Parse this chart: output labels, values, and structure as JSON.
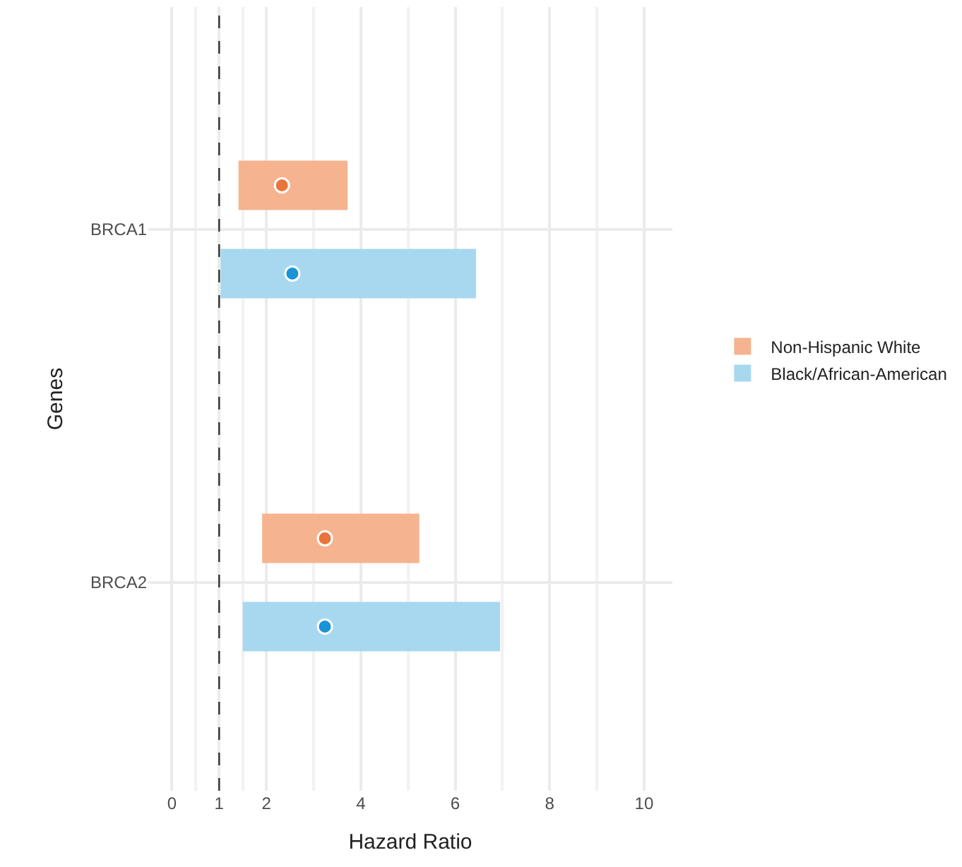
{
  "chart_data": {
    "type": "bar",
    "orientation": "horizontal",
    "xlabel": "Hazard Ratio",
    "ylabel": "Genes",
    "categories": [
      "BRCA1",
      "BRCA2"
    ],
    "series": [
      {
        "name": "Non-Hispanic White",
        "color": "#f5b48f",
        "base": [
          1.41,
          1.91
        ],
        "values": [
          2.31,
          3.33
        ]
      },
      {
        "name": "Black/African-American",
        "color": "#a8d8f0",
        "base": [
          1.03,
          1.5
        ],
        "values": [
          5.41,
          5.45
        ]
      },
      {
        "type": "scatter",
        "color": "#e8743b",
        "values": [
          2.33,
          3.24
        ]
      },
      {
        "type": "scatter",
        "color": "#1a94d6",
        "values": [
          2.55,
          3.24
        ]
      }
    ],
    "xlim": [
      -0.5,
      10.6
    ],
    "xticks": [
      0,
      1,
      2,
      4,
      6,
      8,
      10
    ],
    "ref_lines": [
      {
        "axis": "x",
        "value": 1,
        "line_style": "dashed",
        "color": "#333333"
      }
    ],
    "grid": true,
    "legend": "right",
    "marker": "circle"
  }
}
